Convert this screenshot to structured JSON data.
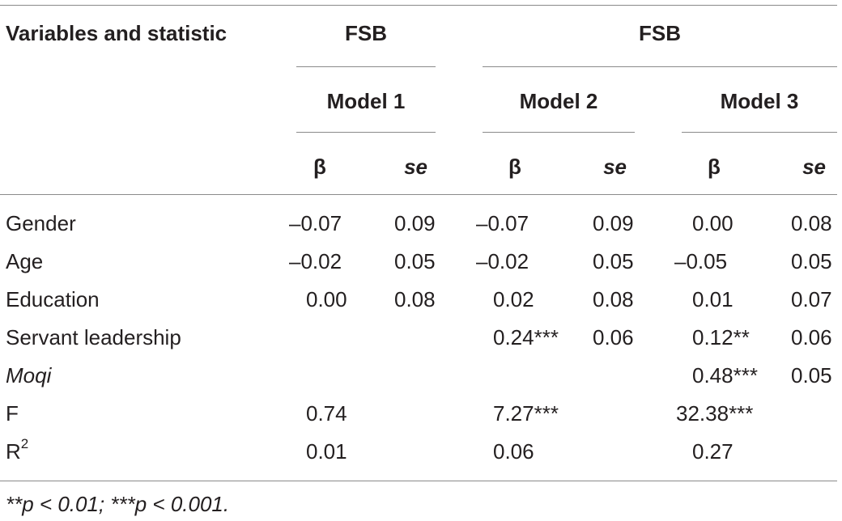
{
  "header": {
    "stub": "Variables and statistic",
    "group1": "FSB",
    "group2": "FSB",
    "models": [
      "Model 1",
      "Model 2",
      "Model 3"
    ],
    "beta": "β",
    "se": "se"
  },
  "rows": [
    {
      "label": "Gender",
      "m1b": "–0.07",
      "m1se": "0.09",
      "m2b": "–0.07",
      "m2se": "0.09",
      "m3b": "0.00",
      "m3se": "0.08"
    },
    {
      "label": "Age",
      "m1b": "–0.02",
      "m1se": "0.05",
      "m2b": "–0.02",
      "m2se": "0.05",
      "m3b": "–0.05",
      "m3se": "0.05"
    },
    {
      "label": "Education",
      "m1b": "0.00",
      "m1se": "0.08",
      "m2b": "0.02",
      "m2se": "0.08",
      "m3b": "0.01",
      "m3se": "0.07"
    },
    {
      "label": "Servant leadership",
      "m1b": "",
      "m1se": "",
      "m2b": "0.24***",
      "m2se": "0.06",
      "m3b": "0.12**",
      "m3se": "0.06"
    },
    {
      "label": "Moqi",
      "m1b": "",
      "m1se": "",
      "m2b": "",
      "m2se": "",
      "m3b": "0.48***",
      "m3se": "0.05"
    },
    {
      "label": "F",
      "m1b": "0.74",
      "m1se": "",
      "m2b": "7.27***",
      "m2se": "",
      "m3b": "32.38***",
      "m3se": ""
    },
    {
      "label": "R",
      "label_sup": "2",
      "m1b": "0.01",
      "m1se": "",
      "m2b": "0.06",
      "m2se": "",
      "m3b": "0.27",
      "m3se": ""
    }
  ],
  "footnote": "**p < 0.01; ***p < 0.001."
}
